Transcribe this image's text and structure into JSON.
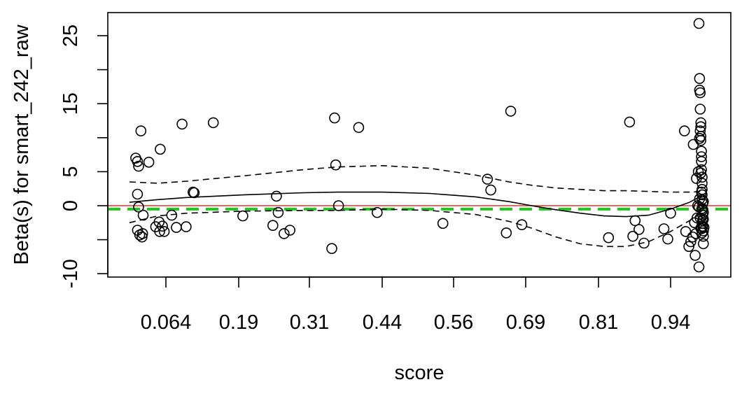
{
  "chart_data": {
    "type": "scatter",
    "title": "",
    "xlabel": "score",
    "ylabel": "Beta(s) for smart_242_raw",
    "x_ticks": [
      "0.064",
      "0.19",
      "0.31",
      "0.44",
      "0.56",
      "0.69",
      "0.81",
      "0.94"
    ],
    "y_ticks": [
      -10,
      0,
      5,
      15,
      25
    ],
    "y_minor_ticks": [
      -5,
      10,
      20
    ],
    "ylim": [
      -10,
      27
    ],
    "grid": false,
    "reference_lines": [
      {
        "y": 0,
        "color": "#e8302c",
        "style": "solid"
      },
      {
        "y": -0.5,
        "color": "#1ec81e",
        "style": "dashed"
      }
    ],
    "smooth": {
      "x": [
        0.0,
        0.05,
        0.1,
        0.2,
        0.3,
        0.36,
        0.44,
        0.52,
        0.6,
        0.66,
        0.7,
        0.74,
        0.78,
        0.82,
        0.86,
        0.9,
        0.94,
        0.97,
        0.99
      ],
      "fit": [
        0.5,
        0.9,
        1.2,
        1.6,
        1.9,
        2.0,
        2.0,
        1.8,
        1.3,
        0.6,
        0.0,
        -0.6,
        -1.1,
        -1.5,
        -1.6,
        -1.4,
        -0.5,
        0.5,
        1.5
      ],
      "upper": [
        3.5,
        3.3,
        3.6,
        4.4,
        5.3,
        5.7,
        5.9,
        5.5,
        4.5,
        3.5,
        3.0,
        2.6,
        2.4,
        2.2,
        2.2,
        2.1,
        2.0,
        2.0,
        2.1
      ],
      "lower": [
        -2.5,
        -1.5,
        -1.1,
        -0.8,
        -0.7,
        -0.7,
        -0.5,
        -0.7,
        -1.3,
        -2.3,
        -3.3,
        -4.6,
        -5.6,
        -6.0,
        -6.0,
        -5.3,
        -3.8,
        -2.2,
        -1.0
      ]
    },
    "points": [
      {
        "x": 0.011,
        "y": 7.0
      },
      {
        "x": 0.014,
        "y": 6.5
      },
      {
        "x": 0.016,
        "y": 5.8
      },
      {
        "x": 0.02,
        "y": 11.0
      },
      {
        "x": 0.034,
        "y": 6.4
      },
      {
        "x": 0.014,
        "y": 1.7
      },
      {
        "x": 0.016,
        "y": -0.2
      },
      {
        "x": 0.014,
        "y": -3.6
      },
      {
        "x": 0.018,
        "y": -4.3
      },
      {
        "x": 0.023,
        "y": -4.1
      },
      {
        "x": 0.022,
        "y": -4.6
      },
      {
        "x": 0.024,
        "y": -1.4
      },
      {
        "x": 0.054,
        "y": 8.3
      },
      {
        "x": 0.052,
        "y": -2.4
      },
      {
        "x": 0.046,
        "y": -3.1
      },
      {
        "x": 0.053,
        "y": -3.8
      },
      {
        "x": 0.058,
        "y": -3.0
      },
      {
        "x": 0.061,
        "y": -3.8
      },
      {
        "x": 0.074,
        "y": -1.4
      },
      {
        "x": 0.082,
        "y": -3.2
      },
      {
        "x": 0.092,
        "y": 12.0
      },
      {
        "x": 0.099,
        "y": -3.1
      },
      {
        "x": 0.111,
        "y": 2.0
      },
      {
        "x": 0.113,
        "y": 1.9
      },
      {
        "x": 0.146,
        "y": 12.2
      },
      {
        "x": 0.197,
        "y": -1.5
      },
      {
        "x": 0.248,
        "y": -2.9
      },
      {
        "x": 0.254,
        "y": 1.4
      },
      {
        "x": 0.257,
        "y": -1.0
      },
      {
        "x": 0.267,
        "y": -4.1
      },
      {
        "x": 0.277,
        "y": -3.6
      },
      {
        "x": 0.35,
        "y": -6.3
      },
      {
        "x": 0.355,
        "y": 12.9
      },
      {
        "x": 0.357,
        "y": 6.0
      },
      {
        "x": 0.362,
        "y": 0.0
      },
      {
        "x": 0.398,
        "y": 11.5
      },
      {
        "x": 0.431,
        "y": -1.0
      },
      {
        "x": 0.542,
        "y": -2.6
      },
      {
        "x": 0.621,
        "y": 3.9
      },
      {
        "x": 0.627,
        "y": 2.3
      },
      {
        "x": 0.655,
        "y": -4.0
      },
      {
        "x": 0.663,
        "y": 13.9
      },
      {
        "x": 0.683,
        "y": -2.8
      },
      {
        "x": 0.828,
        "y": -4.7
      },
      {
        "x": 0.866,
        "y": 12.3
      },
      {
        "x": 0.872,
        "y": -4.5
      },
      {
        "x": 0.876,
        "y": -2.2
      },
      {
        "x": 0.883,
        "y": -3.5
      },
      {
        "x": 0.892,
        "y": -5.5
      },
      {
        "x": 0.928,
        "y": -3.4
      },
      {
        "x": 0.935,
        "y": -4.9
      },
      {
        "x": 0.94,
        "y": -1.1
      },
      {
        "x": 0.962,
        "y": 11.0
      },
      {
        "x": 0.964,
        "y": -3.8
      },
      {
        "x": 0.969,
        "y": -6.0
      },
      {
        "x": 0.972,
        "y": -5.3
      },
      {
        "x": 0.975,
        "y": -4.6
      },
      {
        "x": 0.976,
        "y": 9.0
      },
      {
        "x": 0.978,
        "y": -2.5
      },
      {
        "x": 0.979,
        "y": -7.3
      },
      {
        "x": 0.98,
        "y": -4.1
      },
      {
        "x": 0.981,
        "y": 4.0
      },
      {
        "x": 0.982,
        "y": -1.8
      },
      {
        "x": 0.983,
        "y": 0.0
      },
      {
        "x": 0.984,
        "y": 5.0
      },
      {
        "x": 0.985,
        "y": -9.0
      },
      {
        "x": 0.985,
        "y": 26.8
      },
      {
        "x": 0.986,
        "y": 18.7
      },
      {
        "x": 0.986,
        "y": 17.0
      },
      {
        "x": 0.987,
        "y": 16.6
      },
      {
        "x": 0.987,
        "y": 14.2
      },
      {
        "x": 0.988,
        "y": 12.2
      },
      {
        "x": 0.988,
        "y": 11.6
      },
      {
        "x": 0.988,
        "y": 10.2
      },
      {
        "x": 0.988,
        "y": 9.6
      },
      {
        "x": 0.989,
        "y": 8.0
      },
      {
        "x": 0.989,
        "y": 7.2
      },
      {
        "x": 0.989,
        "y": 6.5
      },
      {
        "x": 0.989,
        "y": 5.3
      },
      {
        "x": 0.99,
        "y": 4.2
      },
      {
        "x": 0.99,
        "y": 3.3
      },
      {
        "x": 0.99,
        "y": 2.4
      },
      {
        "x": 0.99,
        "y": 1.6
      },
      {
        "x": 0.99,
        "y": 0.9
      },
      {
        "x": 0.991,
        "y": 0.3
      },
      {
        "x": 0.991,
        "y": -0.6
      },
      {
        "x": 0.991,
        "y": -1.4
      },
      {
        "x": 0.991,
        "y": -2.2
      },
      {
        "x": 0.991,
        "y": -3.0
      },
      {
        "x": 0.992,
        "y": -3.7
      },
      {
        "x": 0.992,
        "y": -4.5
      },
      {
        "x": 0.992,
        "y": -5.6
      },
      {
        "x": 0.987,
        "y": 11.0
      },
      {
        "x": 0.986,
        "y": 9.9
      },
      {
        "x": 0.988,
        "y": 4.8
      },
      {
        "x": 0.989,
        "y": 2.0
      },
      {
        "x": 0.99,
        "y": -0.4
      },
      {
        "x": 0.99,
        "y": -2.6
      },
      {
        "x": 0.989,
        "y": -3.4
      },
      {
        "x": 0.99,
        "y": -4.0
      },
      {
        "x": 0.985,
        "y": -0.2
      },
      {
        "x": 0.986,
        "y": 1.0
      },
      {
        "x": 0.987,
        "y": -1.8
      },
      {
        "x": 0.988,
        "y": -3.3
      },
      {
        "x": 0.992,
        "y": 0.6
      },
      {
        "x": 0.992,
        "y": -1.0
      },
      {
        "x": 0.992,
        "y": -2.0
      },
      {
        "x": 0.993,
        "y": -3.2
      }
    ]
  }
}
